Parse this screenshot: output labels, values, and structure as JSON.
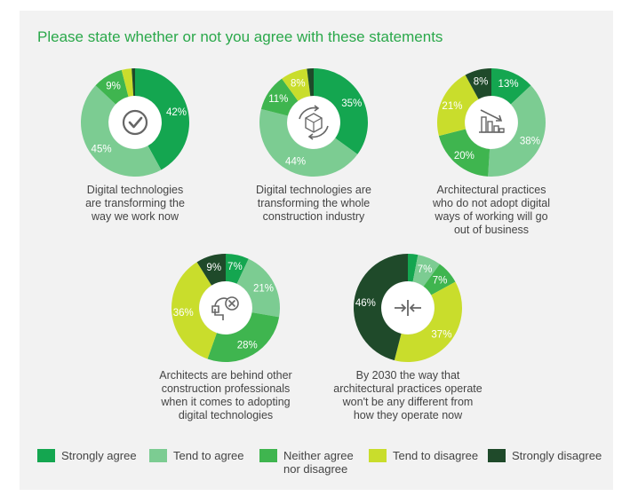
{
  "title": "Please state whether or not you agree with these statements",
  "colors": {
    "strongly_agree": "#14a650",
    "tend_to_agree": "#7ccc92",
    "neither": "#3fb54f",
    "tend_to_disagree": "#c9dd2c",
    "strongly_disagree": "#1f4a2a",
    "title": "#2aa84a",
    "panel": "#f2f2f2"
  },
  "legend": [
    {
      "key": "strongly_agree",
      "label": "Strongly agree",
      "label2": ""
    },
    {
      "key": "tend_to_agree",
      "label": "Tend to agree",
      "label2": ""
    },
    {
      "key": "neither",
      "label": "Neither agree",
      "label2": "nor disagree"
    },
    {
      "key": "tend_to_disagree",
      "label": "Tend to disagree",
      "label2": ""
    },
    {
      "key": "strongly_disagree",
      "label": "Strongly disagree",
      "label2": ""
    }
  ],
  "chart_data": [
    {
      "type": "pie",
      "icon": "checkmark-icon",
      "caption": [
        "Digital technologies",
        "are transforming the",
        "way we work now"
      ],
      "slices": [
        {
          "key": "strongly_agree",
          "value": 42,
          "label": "42%"
        },
        {
          "key": "tend_to_agree",
          "value": 45,
          "label": "45%"
        },
        {
          "key": "neither",
          "value": 9,
          "label": "9%"
        },
        {
          "key": "tend_to_disagree",
          "value": 3,
          "label": ""
        },
        {
          "key": "strongly_disagree",
          "value": 1,
          "label": ""
        }
      ]
    },
    {
      "type": "pie",
      "icon": "rotating-cube-icon",
      "caption": [
        "Digital technologies are",
        "transforming the whole",
        "construction industry"
      ],
      "slices": [
        {
          "key": "strongly_agree",
          "value": 35,
          "label": "35%"
        },
        {
          "key": "tend_to_agree",
          "value": 44,
          "label": "44%"
        },
        {
          "key": "neither",
          "value": 11,
          "label": "11%"
        },
        {
          "key": "tend_to_disagree",
          "value": 8,
          "label": "8%"
        },
        {
          "key": "strongly_disagree",
          "value": 2,
          "label": ""
        }
      ]
    },
    {
      "type": "pie",
      "icon": "declining-bar-chart-icon",
      "caption": [
        "Architectural practices",
        "who do not adopt digital",
        "ways of working will go",
        "out of business"
      ],
      "slices": [
        {
          "key": "strongly_agree",
          "value": 13,
          "label": "13%"
        },
        {
          "key": "tend_to_agree",
          "value": 38,
          "label": "38%"
        },
        {
          "key": "neither",
          "value": 20,
          "label": "20%"
        },
        {
          "key": "tend_to_disagree",
          "value": 21,
          "label": "21%"
        },
        {
          "key": "strongly_disagree",
          "value": 8,
          "label": "8%"
        }
      ]
    },
    {
      "type": "pie",
      "icon": "blocked-headset-icon",
      "caption": [
        "Architects are behind other",
        "construction professionals",
        "when it comes to adopting",
        "digital technologies"
      ],
      "slices": [
        {
          "key": "strongly_agree",
          "value": 7,
          "label": "7%"
        },
        {
          "key": "tend_to_agree",
          "value": 21,
          "label": "21%"
        },
        {
          "key": "neither",
          "value": 28,
          "label": "28%"
        },
        {
          "key": "tend_to_disagree",
          "value": 36,
          "label": "36%"
        },
        {
          "key": "strongly_disagree",
          "value": 9,
          "label": "9%"
        }
      ]
    },
    {
      "type": "pie",
      "icon": "compress-arrows-icon",
      "caption": [
        "By 2030 the way that",
        "architectural practices operate",
        "won't be any different from",
        "how they operate now"
      ],
      "slices": [
        {
          "key": "strongly_agree",
          "value": 3,
          "label": ""
        },
        {
          "key": "tend_to_agree",
          "value": 7,
          "label": "7%"
        },
        {
          "key": "neither",
          "value": 7,
          "label": "7%"
        },
        {
          "key": "tend_to_disagree",
          "value": 37,
          "label": "37%"
        },
        {
          "key": "strongly_disagree",
          "value": 46,
          "label": "46%"
        }
      ]
    }
  ]
}
